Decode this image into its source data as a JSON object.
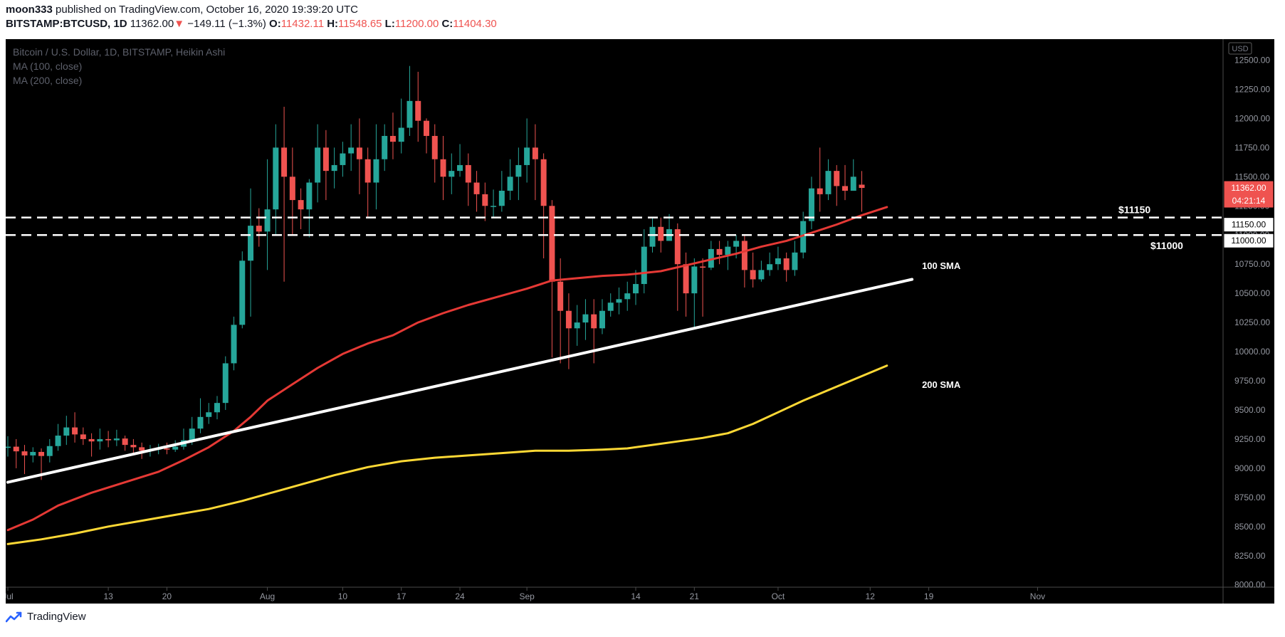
{
  "header": {
    "publisher": "moon333",
    "published_text": "published on TradingView.com, October 16, 2020 19:39:20 UTC",
    "symbol": "BITSTAMP:BTCUSD, 1D",
    "last": "11362.00",
    "change_arrow": "▼",
    "change": "−149.11 (−1.3%)",
    "o_label": "O:",
    "o": "11432.11",
    "h_label": "H:",
    "h": "11548.65",
    "l_label": "L:",
    "l": "11200.00",
    "c_label": "C:",
    "c": "11404.30"
  },
  "legend": {
    "line1": "Bitcoin / U.S. Dollar, 1D, BITSTAMP, Heikin Ashi",
    "line2": "MA (100, close)",
    "line3": "MA (200, close)"
  },
  "footer": {
    "brand": "TradingView"
  },
  "chart_data": {
    "type": "candlestick",
    "currency_label": "USD",
    "y_ticks": [
      "12500.00",
      "12250.00",
      "12000.00",
      "11750.00",
      "11500.00",
      "11250.00",
      "11000.00",
      "10750.00",
      "10500.00",
      "10250.00",
      "10000.00",
      "9750.00",
      "9500.00",
      "9250.00",
      "9000.00",
      "8750.00",
      "8500.00",
      "8250.00",
      "8000.00"
    ],
    "y_tick_values": [
      12500,
      12250,
      12000,
      11750,
      11500,
      11250,
      11000,
      10750,
      10500,
      10250,
      10000,
      9750,
      9500,
      9250,
      9000,
      8750,
      8500,
      8250,
      8000
    ],
    "ylim": [
      7980,
      12680
    ],
    "x_ticks": [
      {
        "label": "Jul",
        "day": 0
      },
      {
        "label": "13",
        "day": 12
      },
      {
        "label": "20",
        "day": 19
      },
      {
        "label": "Aug",
        "day": 31
      },
      {
        "label": "10",
        "day": 40
      },
      {
        "label": "17",
        "day": 47
      },
      {
        "label": "24",
        "day": 54
      },
      {
        "label": "Sep",
        "day": 62
      },
      {
        "label": "14",
        "day": 75
      },
      {
        "label": "21",
        "day": 82
      },
      {
        "label": "Oct",
        "day": 92
      },
      {
        "label": "12",
        "day": 103
      },
      {
        "label": "19",
        "day": 110
      },
      {
        "label": "Nov",
        "day": 123
      }
    ],
    "price_labels": {
      "last": "11362.00",
      "countdown": "04:21:14",
      "level_11150": "11150.00",
      "level_11000": "11000.00"
    },
    "levels": [
      {
        "value": 11150,
        "label": "$11150"
      },
      {
        "value": 11000,
        "label": "$11000"
      }
    ],
    "candle_start_day": 0,
    "candles": [
      [
        9175,
        9185,
        9275,
        9100
      ],
      [
        9185,
        9145,
        9250,
        9000
      ],
      [
        9145,
        9110,
        9200,
        8950
      ],
      [
        9110,
        9140,
        9180,
        9050
      ],
      [
        9140,
        9105,
        9170,
        8900
      ],
      [
        9105,
        9190,
        9250,
        9050
      ],
      [
        9190,
        9280,
        9380,
        9150
      ],
      [
        9280,
        9350,
        9450,
        9200
      ],
      [
        9350,
        9290,
        9480,
        9220
      ],
      [
        9290,
        9250,
        9350,
        9200
      ],
      [
        9250,
        9230,
        9300,
        9100
      ],
      [
        9230,
        9250,
        9340,
        9160
      ],
      [
        9250,
        9240,
        9320,
        9180
      ],
      [
        9240,
        9255,
        9330,
        9190
      ],
      [
        9255,
        9200,
        9280,
        9150
      ],
      [
        9200,
        9180,
        9250,
        9120
      ],
      [
        9180,
        9150,
        9220,
        9080
      ],
      [
        9150,
        9160,
        9200,
        9100
      ],
      [
        9160,
        9170,
        9210,
        9120
      ],
      [
        9170,
        9160,
        9220,
        9120
      ],
      [
        9160,
        9185,
        9240,
        9140
      ],
      [
        9185,
        9240,
        9340,
        9160
      ],
      [
        9240,
        9340,
        9440,
        9200
      ],
      [
        9340,
        9440,
        9600,
        9300
      ],
      [
        9440,
        9480,
        9560,
        9380
      ],
      [
        9480,
        9560,
        9620,
        9420
      ],
      [
        9560,
        9900,
        9960,
        9500
      ],
      [
        9900,
        10230,
        10300,
        9840
      ],
      [
        10230,
        10780,
        10860,
        10200
      ],
      [
        10780,
        11080,
        11400,
        10300
      ],
      [
        11080,
        11030,
        11230,
        10900
      ],
      [
        11030,
        11220,
        11650,
        10700
      ],
      [
        11220,
        11750,
        11950,
        11000
      ],
      [
        11750,
        11500,
        12100,
        10600
      ],
      [
        11500,
        11300,
        11750,
        11000
      ],
      [
        11300,
        11220,
        11400,
        11050
      ],
      [
        11220,
        11450,
        11480,
        10980
      ],
      [
        11450,
        11750,
        11950,
        11280
      ],
      [
        11750,
        11550,
        11900,
        11300
      ],
      [
        11550,
        11600,
        11750,
        11400
      ],
      [
        11600,
        11700,
        11800,
        11500
      ],
      [
        11700,
        11750,
        11950,
        11550
      ],
      [
        11750,
        11650,
        12000,
        11350
      ],
      [
        11650,
        11450,
        11750,
        11150
      ],
      [
        11450,
        11650,
        11950,
        11220
      ],
      [
        11650,
        11850,
        11950,
        11550
      ],
      [
        11850,
        11800,
        12050,
        11650
      ],
      [
        11800,
        11920,
        12170,
        11700
      ],
      [
        11920,
        12150,
        12450,
        11850
      ],
      [
        12150,
        11980,
        12400,
        11800
      ],
      [
        11980,
        11850,
        12000,
        11700
      ],
      [
        11850,
        11650,
        11950,
        11450
      ],
      [
        11650,
        11500,
        11850,
        11300
      ],
      [
        11500,
        11550,
        11700,
        11350
      ],
      [
        11550,
        11600,
        11780,
        11500
      ],
      [
        11600,
        11450,
        11700,
        11250
      ],
      [
        11450,
        11350,
        11550,
        11200
      ],
      [
        11350,
        11250,
        11450,
        11120
      ],
      [
        11250,
        11250,
        11390,
        11150
      ],
      [
        11250,
        11380,
        11550,
        11200
      ],
      [
        11380,
        11500,
        11650,
        11300
      ],
      [
        11500,
        11600,
        11750,
        11300
      ],
      [
        11600,
        11750,
        12000,
        11450
      ],
      [
        11750,
        11650,
        11950,
        11300
      ],
      [
        11650,
        11250,
        11700,
        10800
      ],
      [
        11250,
        10600,
        11300,
        9950
      ],
      [
        10600,
        10350,
        10800,
        9900
      ],
      [
        10350,
        10200,
        10500,
        9850
      ],
      [
        10200,
        10250,
        10400,
        10050
      ],
      [
        10250,
        10320,
        10450,
        10100
      ],
      [
        10320,
        10200,
        10450,
        9900
      ],
      [
        10200,
        10350,
        10450,
        10150
      ],
      [
        10350,
        10420,
        10500,
        10300
      ],
      [
        10420,
        10450,
        10550,
        10320
      ],
      [
        10450,
        10500,
        10600,
        10350
      ],
      [
        10500,
        10580,
        10700,
        10400
      ],
      [
        10580,
        10900,
        11050,
        10500
      ],
      [
        10900,
        11070,
        11150,
        10850
      ],
      [
        11070,
        10950,
        11150,
        10850
      ],
      [
        10950,
        11050,
        11180,
        10950
      ],
      [
        11050,
        10750,
        11100,
        10350
      ],
      [
        10750,
        10500,
        10850,
        10300
      ],
      [
        10500,
        10730,
        10800,
        10200
      ],
      [
        10730,
        10720,
        10800,
        10300
      ],
      [
        10720,
        10880,
        10950,
        10700
      ],
      [
        10880,
        10830,
        10950,
        10750
      ],
      [
        10830,
        10900,
        10950,
        10700
      ],
      [
        10900,
        10950,
        11000,
        10800
      ],
      [
        10950,
        10700,
        11000,
        10550
      ],
      [
        10700,
        10620,
        10850,
        10550
      ],
      [
        10620,
        10700,
        10780,
        10600
      ],
      [
        10700,
        10750,
        10850,
        10650
      ],
      [
        10750,
        10800,
        10900,
        10700
      ],
      [
        10800,
        10700,
        10850,
        10600
      ],
      [
        10700,
        10850,
        10950,
        10650
      ],
      [
        10850,
        11120,
        11200,
        10800
      ],
      [
        11120,
        11400,
        11500,
        11050
      ],
      [
        11400,
        11350,
        11750,
        11200
      ],
      [
        11350,
        11550,
        11650,
        11300
      ],
      [
        11550,
        11420,
        11600,
        11250
      ],
      [
        11420,
        11380,
        11600,
        11300
      ],
      [
        11380,
        11500,
        11650,
        11380
      ],
      [
        11432,
        11404,
        11549,
        11200
      ]
    ],
    "ma100": [
      [
        0,
        8470
      ],
      [
        3,
        8560
      ],
      [
        6,
        8680
      ],
      [
        10,
        8790
      ],
      [
        14,
        8880
      ],
      [
        18,
        8970
      ],
      [
        21,
        9070
      ],
      [
        24,
        9180
      ],
      [
        27,
        9320
      ],
      [
        29,
        9440
      ],
      [
        31,
        9580
      ],
      [
        34,
        9720
      ],
      [
        37,
        9860
      ],
      [
        40,
        9980
      ],
      [
        43,
        10070
      ],
      [
        46,
        10140
      ],
      [
        49,
        10250
      ],
      [
        52,
        10330
      ],
      [
        55,
        10400
      ],
      [
        58,
        10460
      ],
      [
        62,
        10540
      ],
      [
        65,
        10610
      ],
      [
        68,
        10630
      ],
      [
        71,
        10650
      ],
      [
        74,
        10660
      ],
      [
        78,
        10690
      ],
      [
        81,
        10740
      ],
      [
        84,
        10790
      ],
      [
        87,
        10840
      ],
      [
        90,
        10900
      ],
      [
        93,
        10950
      ],
      [
        96,
        11020
      ],
      [
        99,
        11090
      ],
      [
        102,
        11170
      ],
      [
        105,
        11240
      ]
    ],
    "ma200": [
      [
        0,
        8350
      ],
      [
        4,
        8390
      ],
      [
        8,
        8440
      ],
      [
        12,
        8500
      ],
      [
        16,
        8550
      ],
      [
        20,
        8600
      ],
      [
        24,
        8650
      ],
      [
        28,
        8720
      ],
      [
        31,
        8780
      ],
      [
        35,
        8860
      ],
      [
        39,
        8940
      ],
      [
        43,
        9010
      ],
      [
        47,
        9060
      ],
      [
        51,
        9090
      ],
      [
        55,
        9110
      ],
      [
        59,
        9130
      ],
      [
        63,
        9150
      ],
      [
        67,
        9150
      ],
      [
        71,
        9160
      ],
      [
        74,
        9170
      ],
      [
        77,
        9200
      ],
      [
        80,
        9230
      ],
      [
        83,
        9260
      ],
      [
        86,
        9300
      ],
      [
        89,
        9380
      ],
      [
        92,
        9480
      ],
      [
        95,
        9580
      ],
      [
        98,
        9670
      ],
      [
        101,
        9760
      ],
      [
        105,
        9880
      ]
    ],
    "trendline": {
      "from": [
        0,
        8880
      ],
      "to": [
        108,
        10620
      ]
    },
    "ma_labels": [
      {
        "label": "100 SMA",
        "day": 108,
        "value": 10740
      },
      {
        "label": "200 SMA",
        "day": 108,
        "value": 9720
      }
    ],
    "colors": {
      "up": "#26a69a",
      "down": "#ef5350",
      "ma100": "#e53935",
      "ma200": "#fdd835",
      "trend": "#ffffff",
      "bg": "#000000",
      "levels": "#ffffff"
    }
  }
}
